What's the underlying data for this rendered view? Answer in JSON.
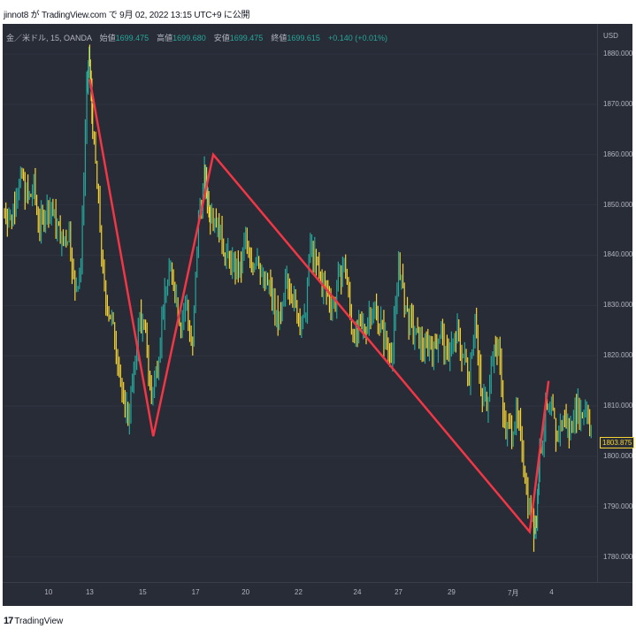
{
  "caption": "jinnot8 が TradingView.com で 9月 02, 2022 13:15 UTC+9 に公開",
  "legend": {
    "symbol": "金／米ドル, 15, OANDA",
    "open_label": "始値",
    "open": "1699.475",
    "high_label": "高値",
    "high": "1699.680",
    "low_label": "安値",
    "low": "1699.475",
    "close_label": "終値",
    "close": "1699.615",
    "change": "+0.140 (+0.01%)"
  },
  "currency": "USD",
  "last_price": "1803.875",
  "footer": {
    "logo": "17",
    "brand": "TradingView"
  },
  "colors": {
    "background": "#282c37",
    "candle_up": "#26a69a",
    "candle_down": "#f5d433",
    "zigzag": "#f23645"
  },
  "chart_data": {
    "type": "line",
    "ylim": [
      1775,
      1886
    ],
    "y_ticks": [
      1880,
      1870,
      1860,
      1850,
      1840,
      1830,
      1820,
      1810,
      1800,
      1790,
      1780
    ],
    "y_tick_labels": [
      "1880.000",
      "1870.000",
      "1860.000",
      "1850.000",
      "1840.000",
      "1830.000",
      "1820.000",
      "1810.000",
      "1800.000",
      "1790.000",
      "1780.000"
    ],
    "x_tick_labels": [
      "10",
      "13",
      "15",
      "17",
      "20",
      "22",
      "24",
      "27",
      "29",
      "7月",
      "4"
    ],
    "x_tick_index": [
      0.075,
      0.145,
      0.235,
      0.325,
      0.41,
      0.5,
      0.6,
      0.67,
      0.76,
      0.865,
      0.93
    ],
    "price_series": {
      "name": "",
      "x": [
        0.0,
        0.01,
        0.02,
        0.03,
        0.04,
        0.05,
        0.06,
        0.07,
        0.08,
        0.09,
        0.1,
        0.11,
        0.12,
        0.13,
        0.14,
        0.145,
        0.15,
        0.16,
        0.17,
        0.18,
        0.19,
        0.2,
        0.21,
        0.22,
        0.23,
        0.24,
        0.25,
        0.26,
        0.27,
        0.28,
        0.29,
        0.3,
        0.31,
        0.32,
        0.33,
        0.34,
        0.345,
        0.35,
        0.36,
        0.37,
        0.38,
        0.39,
        0.4,
        0.41,
        0.42,
        0.43,
        0.44,
        0.45,
        0.46,
        0.47,
        0.48,
        0.49,
        0.5,
        0.51,
        0.52,
        0.53,
        0.54,
        0.55,
        0.56,
        0.57,
        0.58,
        0.59,
        0.6,
        0.61,
        0.62,
        0.63,
        0.64,
        0.65,
        0.66,
        0.67,
        0.68,
        0.69,
        0.7,
        0.71,
        0.72,
        0.73,
        0.74,
        0.75,
        0.76,
        0.77,
        0.78,
        0.79,
        0.8,
        0.81,
        0.82,
        0.83,
        0.84,
        0.85,
        0.86,
        0.87,
        0.88,
        0.89,
        0.9,
        0.905,
        0.91,
        0.92,
        0.93,
        0.94,
        0.95,
        0.96,
        0.97,
        0.98,
        0.99,
        1.0
      ],
      "y": [
        1849,
        1847,
        1852,
        1856,
        1851,
        1853,
        1846,
        1848,
        1849,
        1846,
        1842,
        1845,
        1832,
        1838,
        1874,
        1878,
        1866,
        1850,
        1832,
        1828,
        1822,
        1812,
        1808,
        1816,
        1828,
        1824,
        1811,
        1819,
        1829,
        1838,
        1833,
        1826,
        1830,
        1821,
        1848,
        1855,
        1852,
        1849,
        1847,
        1843,
        1839,
        1838,
        1836,
        1843,
        1838,
        1840,
        1835,
        1834,
        1829,
        1826,
        1836,
        1832,
        1827,
        1826,
        1842,
        1838,
        1834,
        1832,
        1830,
        1836,
        1838,
        1826,
        1824,
        1825,
        1828,
        1830,
        1826,
        1822,
        1821,
        1839,
        1830,
        1826,
        1824,
        1822,
        1823,
        1821,
        1825,
        1820,
        1822,
        1824,
        1820,
        1817,
        1828,
        1812,
        1811,
        1820,
        1822,
        1806,
        1805,
        1808,
        1802,
        1792,
        1785,
        1788,
        1800,
        1808,
        1810,
        1803,
        1808,
        1805,
        1810,
        1808,
        1810,
        1804
      ]
    },
    "zigzag_series": {
      "name": "",
      "x": [
        0.145,
        0.253,
        0.355,
        0.893,
        0.925
      ],
      "y": [
        1875,
        1804,
        1860,
        1785,
        1815
      ]
    }
  }
}
